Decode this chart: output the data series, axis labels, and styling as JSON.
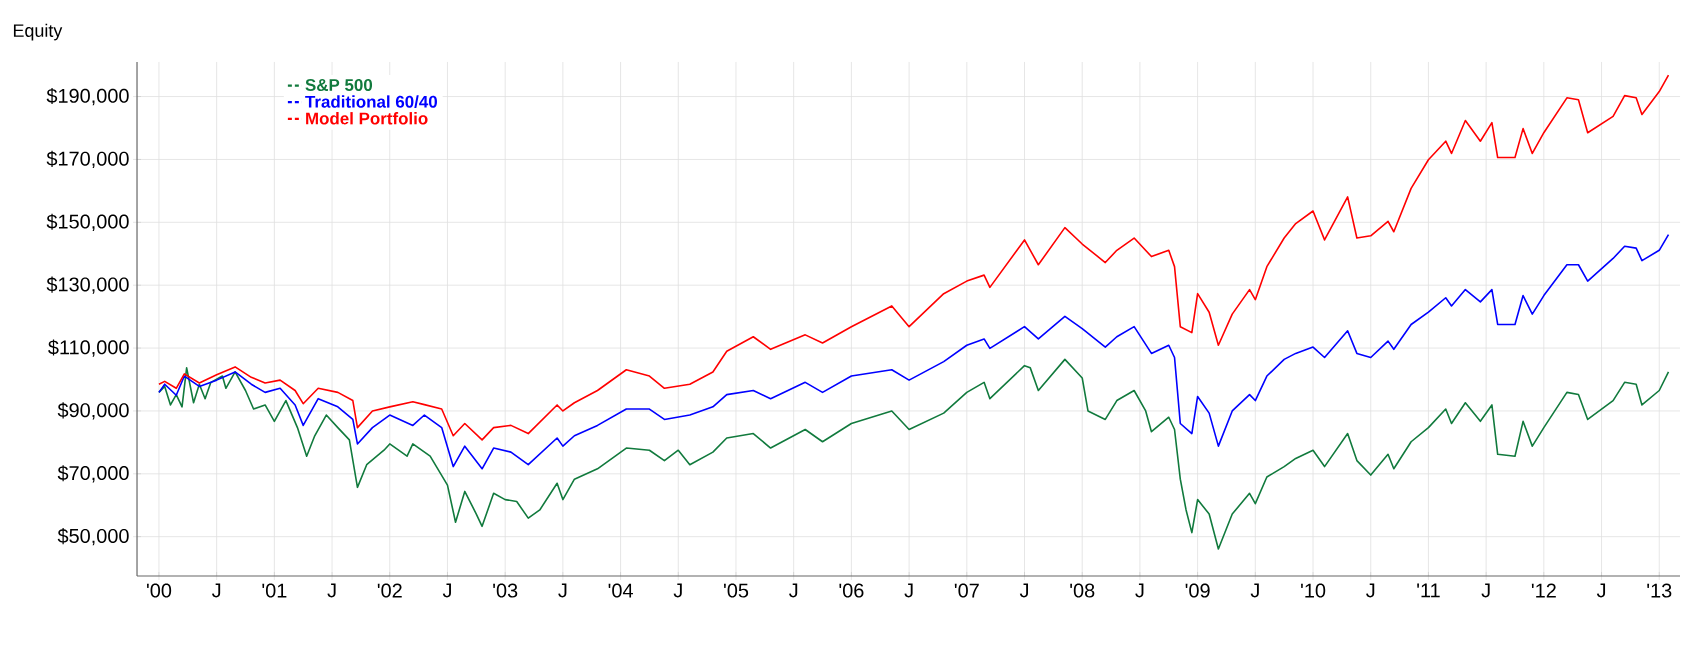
{
  "chart_data": {
    "type": "line",
    "ylabel": "Equity",
    "x": [
      2000.0,
      2000.05,
      2000.15,
      2000.22,
      2000.35,
      2000.5,
      2000.66,
      2000.8,
      2000.92,
      2001.05,
      2001.18,
      2001.25,
      2001.38,
      2001.55,
      2001.68,
      2001.72,
      2001.85,
      2002.0,
      2002.2,
      2002.3,
      2002.45,
      2002.55,
      2002.65,
      2002.8,
      2002.9,
      2003.05,
      2003.2,
      2003.45,
      2003.5,
      2003.6,
      2003.8,
      2004.05,
      2004.25,
      2004.38,
      2004.6,
      2004.8,
      2004.92,
      2005.15,
      2005.3,
      2005.6,
      2005.75,
      2006.0,
      2006.35,
      2006.5,
      2006.8,
      2007.0,
      2007.15,
      2007.2,
      2007.5,
      2007.62,
      2007.85,
      2008.0,
      2008.2,
      2008.3,
      2008.45,
      2008.6,
      2008.75,
      2008.8,
      2008.85,
      2008.95,
      2009.0,
      2009.1,
      2009.18,
      2009.3,
      2009.45,
      2009.5,
      2009.6,
      2009.75,
      2009.85,
      2010.0,
      2010.1,
      2010.3,
      2010.38,
      2010.5,
      2010.65,
      2010.7,
      2010.85,
      2011.0,
      2011.15,
      2011.2,
      2011.32,
      2011.45,
      2011.55,
      2011.6,
      2011.75,
      2011.82,
      2011.9,
      2012.0,
      2012.2,
      2012.3,
      2012.38,
      2012.6,
      2012.7,
      2012.8,
      2012.85,
      2013.0,
      2013.08
    ],
    "series": [
      {
        "name": "S&P 500",
        "color": "#117a3d",
        "x": [
          2000.0,
          2000.05,
          2000.1,
          2000.15,
          2000.2,
          2000.24,
          2000.3,
          2000.35,
          2000.4,
          2000.45,
          2000.55,
          2000.58,
          2000.66,
          2000.75,
          2000.82,
          2000.92,
          2001.0,
          2001.1,
          2001.2,
          2001.28,
          2001.35,
          2001.45,
          2001.55,
          2001.65,
          2001.72,
          2001.8,
          2001.95,
          2002.0,
          2002.15,
          2002.2,
          2002.35,
          2002.5,
          2002.57,
          2002.65,
          2002.75,
          2002.8,
          2002.9,
          2003.0,
          2003.1,
          2003.2,
          2003.3,
          2003.45,
          2003.5,
          2003.6,
          2003.8,
          2004.05,
          2004.25,
          2004.38,
          2004.5,
          2004.6,
          2004.8,
          2004.92,
          2005.15,
          2005.3,
          2005.6,
          2005.75,
          2006.0,
          2006.35,
          2006.5,
          2006.8,
          2007.0,
          2007.15,
          2007.2,
          2007.5,
          2007.55,
          2007.62,
          2007.85,
          2008.0,
          2008.05,
          2008.2,
          2008.3,
          2008.45,
          2008.55,
          2008.6,
          2008.75,
          2008.8,
          2008.85,
          2008.9,
          2008.95,
          2009.0,
          2009.1,
          2009.18,
          2009.3,
          2009.45,
          2009.5,
          2009.6,
          2009.75,
          2009.85,
          2010.0,
          2010.1,
          2010.3,
          2010.38,
          2010.5,
          2010.65,
          2010.7,
          2010.85,
          2011.0,
          2011.15,
          2011.2,
          2011.32,
          2011.45,
          2011.55,
          2011.6,
          2011.75,
          2011.82,
          2011.9,
          2012.0,
          2012.2,
          2012.3,
          2012.38,
          2012.6,
          2012.7,
          2012.8,
          2012.85,
          2013.0,
          2013.08
        ],
        "values": [
          95900,
          97800,
          91900,
          95200,
          91300,
          103700,
          92600,
          98500,
          93900,
          99100,
          101100,
          97200,
          102400,
          96500,
          90600,
          91900,
          86700,
          93300,
          84700,
          75600,
          82100,
          88700,
          84700,
          80800,
          65700,
          72900,
          77500,
          79500,
          75600,
          79500,
          75600,
          66400,
          54600,
          64400,
          57200,
          53300,
          63800,
          61800,
          61200,
          55900,
          58500,
          67000,
          61800,
          68300,
          71600,
          78200,
          77500,
          74200,
          77500,
          72900,
          76900,
          81400,
          82800,
          78200,
          84100,
          80200,
          86000,
          90000,
          84100,
          89300,
          95900,
          99100,
          93900,
          104400,
          103700,
          96500,
          106400,
          100500,
          90000,
          87300,
          93300,
          96500,
          90000,
          83400,
          88000,
          84100,
          68300,
          58500,
          51300,
          61800,
          57200,
          46100,
          57200,
          63800,
          60500,
          69000,
          72300,
          74900,
          77500,
          72300,
          82800,
          74200,
          69600,
          76200,
          71600,
          80200,
          84700,
          90600,
          86000,
          92600,
          86700,
          91900,
          76200,
          75600,
          86700,
          78800,
          84700,
          95900,
          95200,
          87300,
          93300,
          99100,
          98500,
          91900,
          96500,
          102400
        ]
      },
      {
        "name": "Traditional 60/40",
        "color": "#0000ff",
        "values": [
          95900,
          98500,
          95000,
          101100,
          97800,
          99800,
          102400,
          98500,
          95900,
          97200,
          91900,
          85400,
          93900,
          91300,
          87300,
          79500,
          84700,
          88700,
          85400,
          88700,
          84700,
          72300,
          78800,
          71600,
          78200,
          76900,
          72900,
          81400,
          78800,
          82100,
          85400,
          90600,
          90600,
          87300,
          88700,
          91300,
          95200,
          96500,
          93900,
          99100,
          95900,
          101100,
          103100,
          99800,
          105700,
          110900,
          112900,
          109900,
          116800,
          112900,
          120100,
          116200,
          110300,
          113600,
          116800,
          108300,
          110900,
          107000,
          86000,
          82800,
          94600,
          89300,
          78800,
          90000,
          95200,
          93300,
          101100,
          106400,
          108300,
          110300,
          107000,
          115500,
          108300,
          107000,
          112200,
          109600,
          117500,
          121400,
          126000,
          123400,
          128600,
          124700,
          128600,
          117500,
          117500,
          126700,
          120800,
          126700,
          136500,
          136500,
          131300,
          138500,
          142400,
          141800,
          137800,
          141100,
          146100
        ]
      },
      {
        "name": "Model Portfolio",
        "color": "#ff0000",
        "values": [
          98500,
          99400,
          97200,
          101800,
          98900,
          101500,
          104000,
          100700,
          98900,
          99800,
          96500,
          92300,
          97200,
          95900,
          93300,
          84700,
          90000,
          91300,
          92900,
          92000,
          90600,
          82100,
          86000,
          80800,
          84700,
          85400,
          82800,
          91900,
          90000,
          92600,
          96500,
          103100,
          101100,
          97200,
          98500,
          102400,
          109000,
          113600,
          109600,
          114200,
          111600,
          116800,
          123400,
          116800,
          127300,
          131300,
          133200,
          129300,
          144400,
          136500,
          148300,
          143100,
          137200,
          141100,
          145000,
          139100,
          141100,
          135900,
          116800,
          114900,
          127300,
          121400,
          110900,
          120800,
          128600,
          125400,
          135900,
          145000,
          149600,
          153600,
          144400,
          158100,
          145000,
          145700,
          150300,
          147000,
          160800,
          169900,
          175800,
          171900,
          182400,
          175800,
          181700,
          170600,
          170600,
          179800,
          171900,
          178500,
          189600,
          189000,
          178500,
          183700,
          190300,
          189600,
          184300,
          191600,
          196800
        ]
      }
    ],
    "xlim": [
      1999.81,
      2013.18
    ],
    "ylim": [
      37500,
      201000
    ],
    "xticks": [
      {
        "value": 2000,
        "label": "'00"
      },
      {
        "value": 2000.5,
        "label": "J"
      },
      {
        "value": 2001,
        "label": "'01"
      },
      {
        "value": 2001.5,
        "label": "J"
      },
      {
        "value": 2002,
        "label": "'02"
      },
      {
        "value": 2002.5,
        "label": "J"
      },
      {
        "value": 2003,
        "label": "'03"
      },
      {
        "value": 2003.5,
        "label": "J"
      },
      {
        "value": 2004,
        "label": "'04"
      },
      {
        "value": 2004.5,
        "label": "J"
      },
      {
        "value": 2005,
        "label": "'05"
      },
      {
        "value": 2005.5,
        "label": "J"
      },
      {
        "value": 2006,
        "label": "'06"
      },
      {
        "value": 2006.5,
        "label": "J"
      },
      {
        "value": 2007,
        "label": "'07"
      },
      {
        "value": 2007.5,
        "label": "J"
      },
      {
        "value": 2008,
        "label": "'08"
      },
      {
        "value": 2008.5,
        "label": "J"
      },
      {
        "value": 2009,
        "label": "'09"
      },
      {
        "value": 2009.5,
        "label": "J"
      },
      {
        "value": 2010,
        "label": "'10"
      },
      {
        "value": 2010.5,
        "label": "J"
      },
      {
        "value": 2011,
        "label": "'11"
      },
      {
        "value": 2011.5,
        "label": "J"
      },
      {
        "value": 2012,
        "label": "'12"
      },
      {
        "value": 2012.5,
        "label": "J"
      },
      {
        "value": 2013,
        "label": "'13"
      }
    ],
    "yticks": [
      {
        "value": 50000,
        "label": "$50,000"
      },
      {
        "value": 70000,
        "label": "$70,000"
      },
      {
        "value": 90000,
        "label": "$90,000"
      },
      {
        "value": 110000,
        "label": "$110,000"
      },
      {
        "value": 130000,
        "label": "$130,000"
      },
      {
        "value": 150000,
        "label": "$150,000"
      },
      {
        "value": 170000,
        "label": "$170,000"
      },
      {
        "value": 190000,
        "label": "$190,000"
      }
    ],
    "grid": true,
    "legend": "top left",
    "line_style": "solid"
  }
}
